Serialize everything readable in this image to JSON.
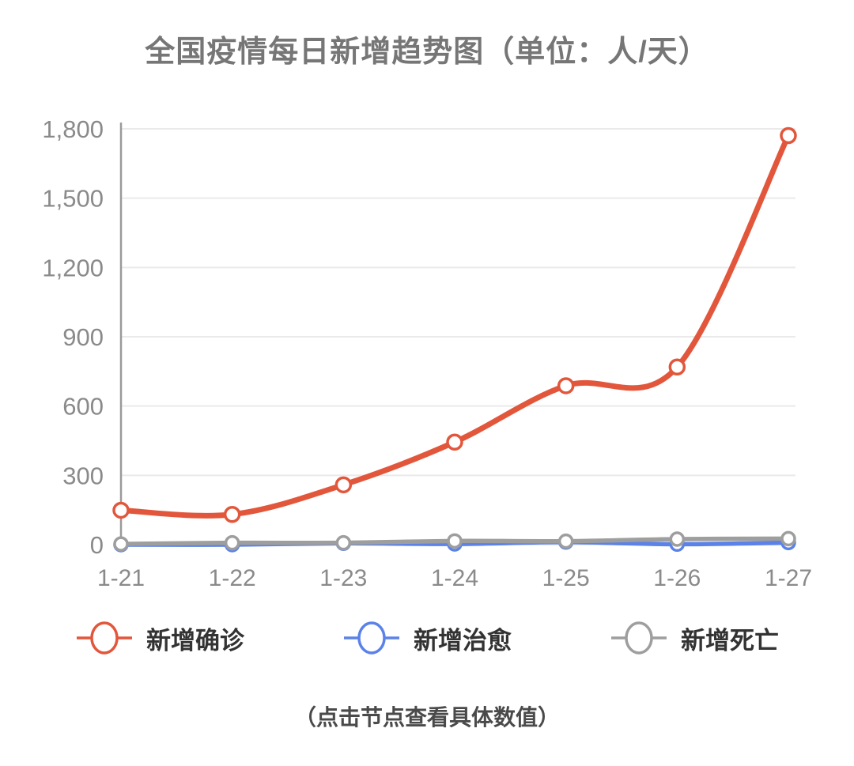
{
  "title": "全国疫情每日新增趋势图（单位：人/天）",
  "footnote": "（点击节点查看具体数值）",
  "colors": {
    "confirmed": "#e2573c",
    "cured": "#5b82e8",
    "deaths": "#9e9e9e",
    "grid": "#eaeaea",
    "axis": "#9a9a9a",
    "tick_text": "#8a8a8a",
    "title_text": "#767676",
    "legend_text": "#333333",
    "footnote_text": "#4a4a4a"
  },
  "legend": [
    {
      "label": "新增确诊",
      "color": "#e2573c",
      "marker": "hollow-circle-line-icon"
    },
    {
      "label": "新增治愈",
      "color": "#5b82e8",
      "marker": "hollow-circle-line-icon"
    },
    {
      "label": "新增死亡",
      "color": "#9e9e9e",
      "marker": "hollow-circle-line-icon"
    }
  ],
  "chart_data": {
    "type": "line",
    "title": "全国疫情每日新增趋势图（单位：人/天）",
    "xlabel": "",
    "ylabel": "",
    "categories": [
      "1-21",
      "1-22",
      "1-23",
      "1-24",
      "1-25",
      "1-26",
      "1-27"
    ],
    "series": [
      {
        "name": "新增确诊",
        "key": "new-confirmed",
        "color": "#e2573c",
        "values": [
          149,
          131,
          259,
          444,
          688,
          769,
          1771
        ]
      },
      {
        "name": "新增治愈",
        "key": "new-cured",
        "color": "#5b82e8",
        "values": [
          0,
          0,
          6,
          3,
          11,
          2,
          9
        ]
      },
      {
        "name": "新增死亡",
        "key": "new-deaths",
        "color": "#9e9e9e",
        "values": [
          3,
          8,
          8,
          16,
          15,
          24,
          26
        ]
      }
    ],
    "ylim": [
      0,
      1800
    ],
    "yticks": [
      0,
      300,
      600,
      900,
      1200,
      1500,
      1800
    ],
    "ytick_labels": [
      "0",
      "300",
      "600",
      "900",
      "1,200",
      "1,500",
      "1,800"
    ],
    "grid": true,
    "smooth": true,
    "marker": "hollow-circle",
    "legend_position": "bottom"
  }
}
